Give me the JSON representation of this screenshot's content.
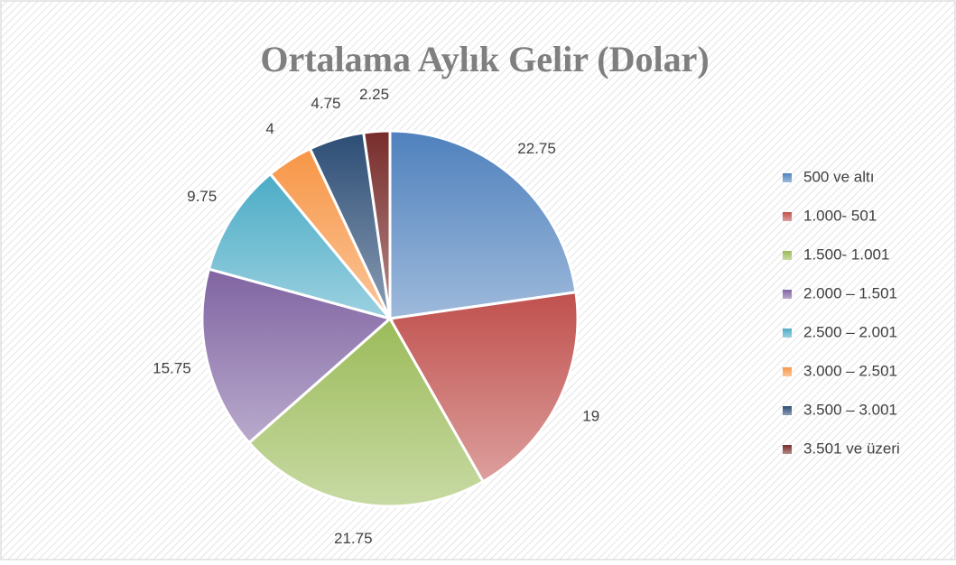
{
  "chart_data": {
    "type": "pie",
    "title": "Ortalama Aylık Gelir (Dolar)",
    "categories": [
      "500 ve altı",
      "1.000- 501",
      "1.500- 1.001",
      "2.000 – 1.501",
      "2.500 – 2.001",
      "3.000 – 2.501",
      "3.500 – 3.001",
      "3.501 ve üzeri"
    ],
    "values": [
      22.75,
      19,
      21.75,
      15.75,
      9.75,
      4,
      4.75,
      2.25
    ],
    "colors": [
      "#4f81bd",
      "#c0504d",
      "#9bbb59",
      "#8064a2",
      "#4bacc6",
      "#f79646",
      "#2c4d75",
      "#772c2a"
    ],
    "legend": "right"
  }
}
